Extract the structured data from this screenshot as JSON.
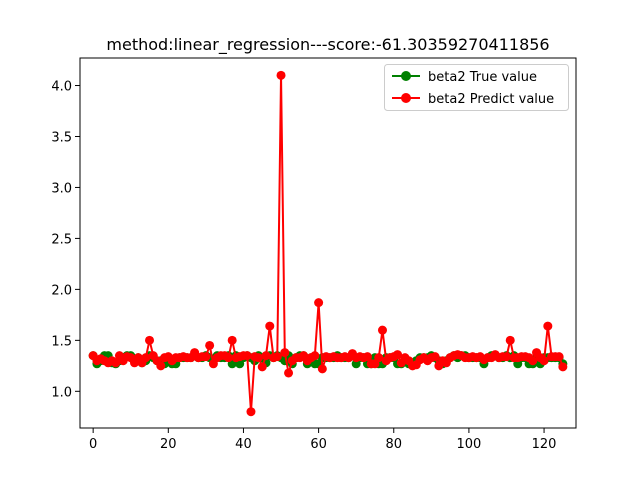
{
  "chart_data": {
    "type": "line",
    "title": "method:linear_regression---score:-61.30359270411856",
    "xlabel": "",
    "ylabel": "",
    "xlim": [
      -3.5,
      128.5
    ],
    "ylim": [
      0.64,
      4.27
    ],
    "xticks": [
      0,
      20,
      40,
      60,
      80,
      100,
      120
    ],
    "yticks": [
      1.0,
      1.5,
      2.0,
      2.5,
      3.0,
      3.5,
      4.0
    ],
    "xtick_labels": [
      "0",
      "20",
      "40",
      "60",
      "80",
      "100",
      "120"
    ],
    "ytick_labels": [
      "1.0",
      "1.5",
      "2.0",
      "2.5",
      "3.0",
      "3.5",
      "4.0"
    ],
    "grid": false,
    "legend_position": "top-right",
    "series": [
      {
        "name": "beta2 True value",
        "color": "#008000",
        "x": [
          0,
          1,
          2,
          3,
          4,
          5,
          6,
          7,
          8,
          9,
          10,
          11,
          12,
          13,
          14,
          15,
          16,
          17,
          18,
          19,
          20,
          21,
          22,
          23,
          24,
          25,
          26,
          27,
          28,
          29,
          30,
          31,
          32,
          33,
          34,
          35,
          36,
          37,
          38,
          39,
          40,
          41,
          42,
          43,
          44,
          45,
          46,
          47,
          48,
          49,
          50,
          51,
          52,
          53,
          54,
          55,
          56,
          57,
          58,
          59,
          60,
          61,
          62,
          63,
          64,
          65,
          66,
          67,
          68,
          69,
          70,
          71,
          72,
          73,
          74,
          75,
          76,
          77,
          78,
          79,
          80,
          81,
          82,
          83,
          84,
          85,
          86,
          87,
          88,
          89,
          90,
          91,
          92,
          93,
          94,
          95,
          96,
          97,
          98,
          99,
          100,
          101,
          102,
          103,
          104,
          105,
          106,
          107,
          108,
          109,
          110,
          111,
          112,
          113,
          114,
          115,
          116,
          117,
          118,
          119,
          120,
          121,
          122,
          123,
          124,
          125
        ],
        "values": [
          1.35,
          1.27,
          1.3,
          1.35,
          1.35,
          1.28,
          1.27,
          1.3,
          1.33,
          1.35,
          1.35,
          1.3,
          1.33,
          1.28,
          1.3,
          1.35,
          1.33,
          1.3,
          1.3,
          1.27,
          1.3,
          1.27,
          1.27,
          1.33,
          1.33,
          1.33,
          1.33,
          1.35,
          1.33,
          1.33,
          1.35,
          1.33,
          1.3,
          1.35,
          1.33,
          1.33,
          1.35,
          1.27,
          1.35,
          1.27,
          1.33,
          1.35,
          1.33,
          1.3,
          1.35,
          1.33,
          1.28,
          1.35,
          1.33,
          1.35,
          1.33,
          1.3,
          1.35,
          1.27,
          1.33,
          1.35,
          1.35,
          1.27,
          1.33,
          1.27,
          1.27,
          1.33,
          1.33,
          1.33,
          1.33,
          1.35,
          1.33,
          1.33,
          1.33,
          1.35,
          1.27,
          1.33,
          1.33,
          1.27,
          1.27,
          1.33,
          1.27,
          1.27,
          1.33,
          1.33,
          1.33,
          1.27,
          1.27,
          1.3,
          1.27,
          1.27,
          1.3,
          1.33,
          1.33,
          1.33,
          1.35,
          1.33,
          1.3,
          1.27,
          1.3,
          1.33,
          1.35,
          1.33,
          1.35,
          1.35,
          1.33,
          1.33,
          1.33,
          1.33,
          1.27,
          1.33,
          1.35,
          1.35,
          1.33,
          1.33,
          1.35,
          1.33,
          1.35,
          1.27,
          1.33,
          1.33,
          1.27,
          1.27,
          1.33,
          1.27,
          1.33,
          1.33,
          1.33,
          1.33,
          1.33,
          1.27
        ]
      },
      {
        "name": "beta2 Predict value",
        "color": "#ff0000",
        "x": [
          0,
          1,
          2,
          3,
          4,
          5,
          6,
          7,
          8,
          9,
          10,
          11,
          12,
          13,
          14,
          15,
          16,
          17,
          18,
          19,
          20,
          21,
          22,
          23,
          24,
          25,
          26,
          27,
          28,
          29,
          30,
          31,
          32,
          33,
          34,
          35,
          36,
          37,
          38,
          39,
          40,
          41,
          42,
          43,
          44,
          45,
          46,
          47,
          48,
          49,
          50,
          51,
          52,
          53,
          54,
          55,
          56,
          57,
          58,
          59,
          60,
          61,
          62,
          63,
          64,
          65,
          66,
          67,
          68,
          69,
          70,
          71,
          72,
          73,
          74,
          75,
          76,
          77,
          78,
          79,
          80,
          81,
          82,
          83,
          84,
          85,
          86,
          87,
          88,
          89,
          90,
          91,
          92,
          93,
          94,
          95,
          96,
          97,
          98,
          99,
          100,
          101,
          102,
          103,
          104,
          105,
          106,
          107,
          108,
          109,
          110,
          111,
          112,
          113,
          114,
          115,
          116,
          117,
          118,
          119,
          120,
          121,
          122,
          123,
          124,
          125
        ],
        "values": [
          1.35,
          1.3,
          1.32,
          1.3,
          1.28,
          1.3,
          1.28,
          1.35,
          1.3,
          1.34,
          1.33,
          1.28,
          1.33,
          1.28,
          1.33,
          1.5,
          1.35,
          1.3,
          1.25,
          1.33,
          1.34,
          1.3,
          1.33,
          1.33,
          1.34,
          1.33,
          1.33,
          1.38,
          1.33,
          1.34,
          1.34,
          1.45,
          1.27,
          1.33,
          1.35,
          1.35,
          1.33,
          1.5,
          1.33,
          1.34,
          1.35,
          1.35,
          0.8,
          1.34,
          1.33,
          1.24,
          1.35,
          1.64,
          1.33,
          1.34,
          4.1,
          1.38,
          1.18,
          1.3,
          1.33,
          1.33,
          1.35,
          1.3,
          1.33,
          1.35,
          1.87,
          1.22,
          1.34,
          1.33,
          1.34,
          1.33,
          1.33,
          1.34,
          1.33,
          1.37,
          1.33,
          1.34,
          1.33,
          1.34,
          1.27,
          1.27,
          1.33,
          1.6,
          1.3,
          1.33,
          1.34,
          1.36,
          1.28,
          1.33,
          1.3,
          1.25,
          1.26,
          1.31,
          1.33,
          1.3,
          1.33,
          1.34,
          1.25,
          1.3,
          1.28,
          1.33,
          1.35,
          1.36,
          1.35,
          1.33,
          1.33,
          1.34,
          1.33,
          1.34,
          1.31,
          1.33,
          1.33,
          1.36,
          1.33,
          1.34,
          1.34,
          1.5,
          1.33,
          1.33,
          1.34,
          1.34,
          1.33,
          1.3,
          1.38,
          1.33,
          1.3,
          1.64,
          1.34,
          1.34,
          1.34,
          1.24
        ]
      }
    ]
  }
}
